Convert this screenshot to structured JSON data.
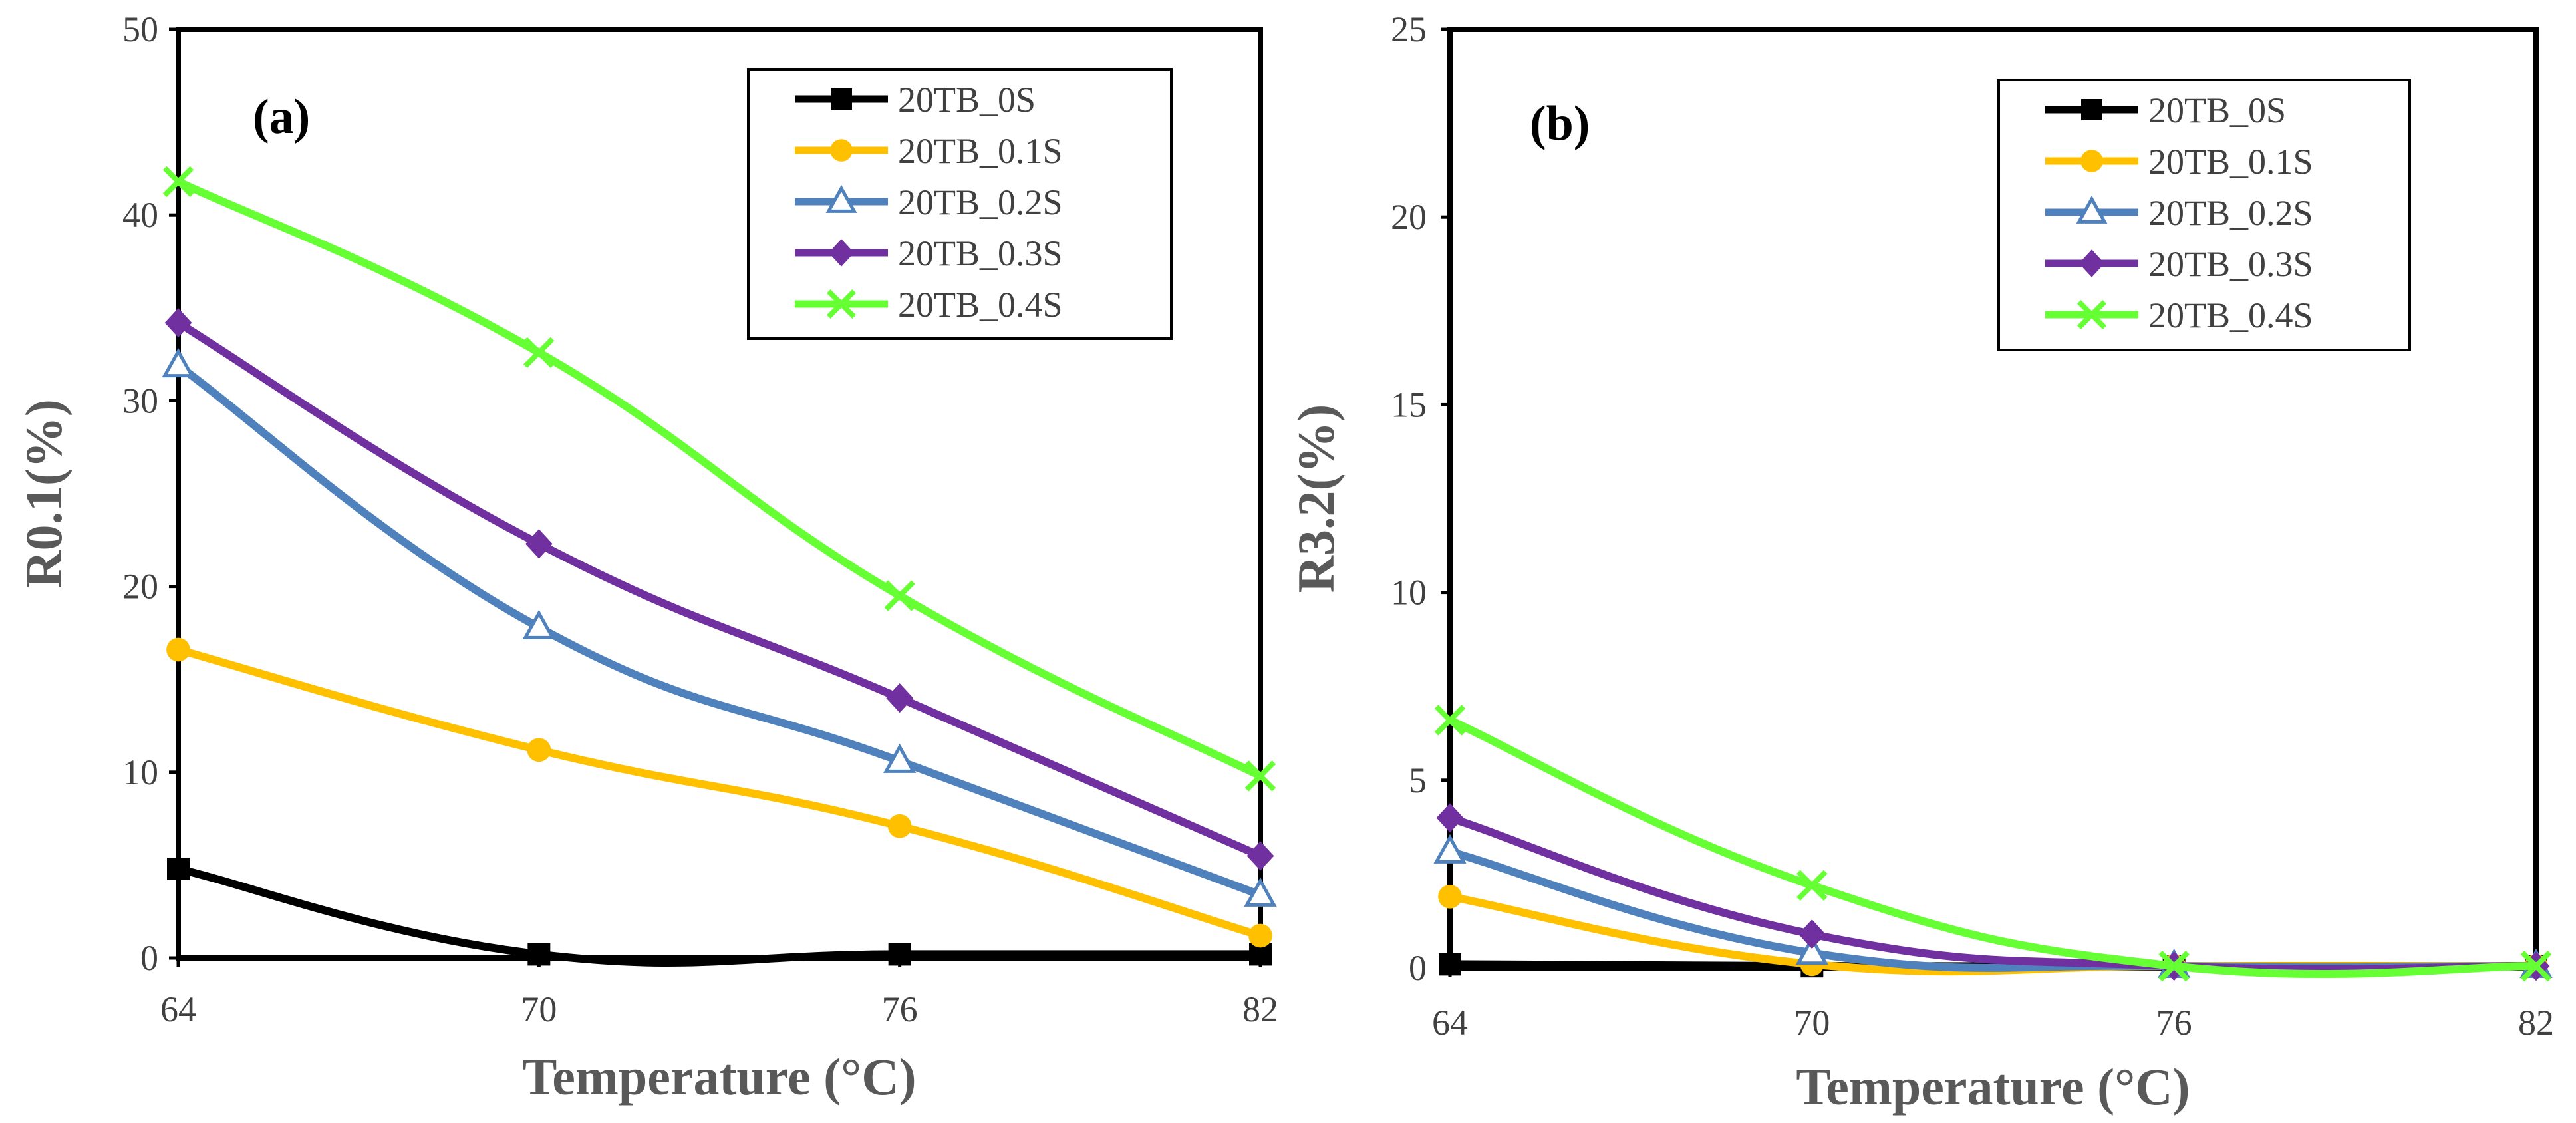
{
  "chart_data": [
    {
      "type": "line",
      "panel_label": "(a)",
      "xlabel": "Temperature (°C)",
      "ylabel": "R0.1(%)",
      "categories": [
        "64",
        "70",
        "76",
        "82"
      ],
      "ylim": [
        0,
        50
      ],
      "yticks": [
        "0",
        "10",
        "20",
        "30",
        "40",
        "50"
      ],
      "grid": false,
      "legend_position": "top-right",
      "series": [
        {
          "name": "20TB_0S",
          "color": "#000000",
          "marker": "square",
          "values": [
            4.8,
            0.2,
            0.2,
            0.2
          ]
        },
        {
          "name": "20TB_0.1S",
          "color": "#FFC000",
          "marker": "circle",
          "values": [
            16.6,
            11.2,
            7.1,
            1.2
          ]
        },
        {
          "name": "20TB_0.2S",
          "color": "#4F81BD",
          "marker": "triangle",
          "values": [
            31.9,
            17.8,
            10.6,
            3.4
          ]
        },
        {
          "name": "20TB_0.3S",
          "color": "#7030A0",
          "marker": "diamond",
          "values": [
            34.2,
            22.3,
            14.0,
            5.5
          ]
        },
        {
          "name": "20TB_0.4S",
          "color": "#66FF33",
          "marker": "x",
          "values": [
            41.8,
            32.6,
            19.5,
            9.8
          ]
        }
      ]
    },
    {
      "type": "line",
      "panel_label": "(b)",
      "xlabel": "Temperature (°C)",
      "ylabel": "R3.2(%)",
      "categories": [
        "64",
        "70",
        "76",
        "82"
      ],
      "ylim": [
        0,
        25
      ],
      "yticks": [
        "0",
        "5",
        "10",
        "15",
        "20",
        "25"
      ],
      "grid": false,
      "legend_position": "top-right",
      "series": [
        {
          "name": "20TB_0S",
          "color": "#000000",
          "marker": "square",
          "values": [
            0.1,
            0.05,
            0.05,
            0.05
          ]
        },
        {
          "name": "20TB_0.1S",
          "color": "#FFC000",
          "marker": "circle",
          "values": [
            1.9,
            0.1,
            0.05,
            0.05
          ]
        },
        {
          "name": "20TB_0.2S",
          "color": "#4F81BD",
          "marker": "triangle",
          "values": [
            3.1,
            0.4,
            0.05,
            0.05
          ]
        },
        {
          "name": "20TB_0.3S",
          "color": "#7030A0",
          "marker": "diamond",
          "values": [
            4.0,
            0.9,
            0.05,
            0.05
          ]
        },
        {
          "name": "20TB_0.4S",
          "color": "#66FF33",
          "marker": "x",
          "values": [
            6.6,
            2.2,
            0.05,
            0.05
          ]
        }
      ]
    }
  ]
}
